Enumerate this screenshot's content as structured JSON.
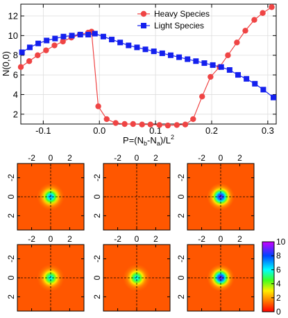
{
  "chart_data": [
    {
      "type": "line",
      "xlabel": "P=(N_b-N_a)/L^2",
      "ylabel": "N(0,0)",
      "xlim": [
        -0.14,
        0.315
      ],
      "ylim": [
        1.0,
        13.2
      ],
      "xticks": [
        -0.1,
        0.0,
        0.1,
        0.2,
        0.3
      ],
      "xtick_labels": [
        "-0.1",
        "0.0",
        "0.1",
        "0.2",
        "0.3"
      ],
      "yticks": [
        2,
        4,
        6,
        8,
        10,
        12
      ],
      "ytick_labels": [
        "2",
        "4",
        "6",
        "8",
        "10",
        "12"
      ],
      "grid": true,
      "legend_position": "top-right",
      "series": [
        {
          "name": "Heavy Species",
          "color": "#ef4444",
          "marker": "circle",
          "x": [
            -0.14,
            -0.125,
            -0.11,
            -0.095,
            -0.08,
            -0.065,
            -0.05,
            -0.035,
            -0.02,
            -0.014,
            -0.002,
            0.013,
            0.029,
            0.045,
            0.06,
            0.076,
            0.091,
            0.107,
            0.122,
            0.138,
            0.153,
            0.167,
            0.183,
            0.198,
            0.214,
            0.229,
            0.245,
            0.26,
            0.276,
            0.291,
            0.307
          ],
          "values": [
            6.8,
            7.4,
            8.0,
            8.5,
            9.0,
            9.4,
            9.8,
            10.1,
            10.3,
            10.4,
            2.8,
            1.5,
            1.1,
            1.0,
            1.0,
            0.95,
            0.95,
            0.9,
            0.85,
            0.9,
            0.95,
            1.5,
            3.8,
            5.8,
            6.8,
            8.0,
            9.3,
            10.5,
            11.6,
            12.3,
            12.9
          ]
        },
        {
          "name": "Light Species",
          "color": "#1420ee",
          "marker": "square",
          "x": [
            -0.138,
            -0.124,
            -0.109,
            -0.094,
            -0.079,
            -0.064,
            -0.049,
            -0.034,
            -0.02,
            -0.008,
            0.007,
            0.022,
            0.037,
            0.052,
            0.067,
            0.082,
            0.097,
            0.112,
            0.127,
            0.142,
            0.157,
            0.172,
            0.187,
            0.202,
            0.217,
            0.232,
            0.247,
            0.262,
            0.277,
            0.292,
            0.31
          ],
          "values": [
            8.3,
            8.8,
            9.2,
            9.5,
            9.7,
            9.9,
            10.0,
            10.1,
            10.1,
            10.2,
            9.9,
            9.6,
            9.3,
            9.0,
            8.8,
            8.6,
            8.4,
            8.2,
            8.0,
            7.8,
            7.6,
            7.4,
            7.2,
            7.0,
            6.8,
            6.5,
            6.0,
            5.6,
            5.1,
            4.5,
            3.7
          ]
        }
      ]
    },
    {
      "type": "heatmap",
      "panels": 6,
      "layout": "2 rows x 3 columns",
      "xlim": [
        -3.5,
        3.5
      ],
      "ylim": [
        -3.5,
        3.5
      ],
      "ticks": [
        -2,
        0,
        2
      ],
      "tick_labels": [
        "-2",
        "0",
        "2"
      ],
      "x_ticks_position": "top",
      "y_tick_labels_rotated": true,
      "crosshair_lines": "dashed at x=0 and y=0",
      "colorbar": {
        "min": 0,
        "max": 10,
        "ticks": [
          0,
          2,
          4,
          6,
          8,
          10
        ],
        "tick_labels": [
          "0",
          "2",
          "4",
          "6",
          "8",
          "10"
        ]
      },
      "panel_peaks": [
        7,
        0,
        9,
        6,
        6,
        9
      ],
      "background_level": 1.1
    }
  ]
}
